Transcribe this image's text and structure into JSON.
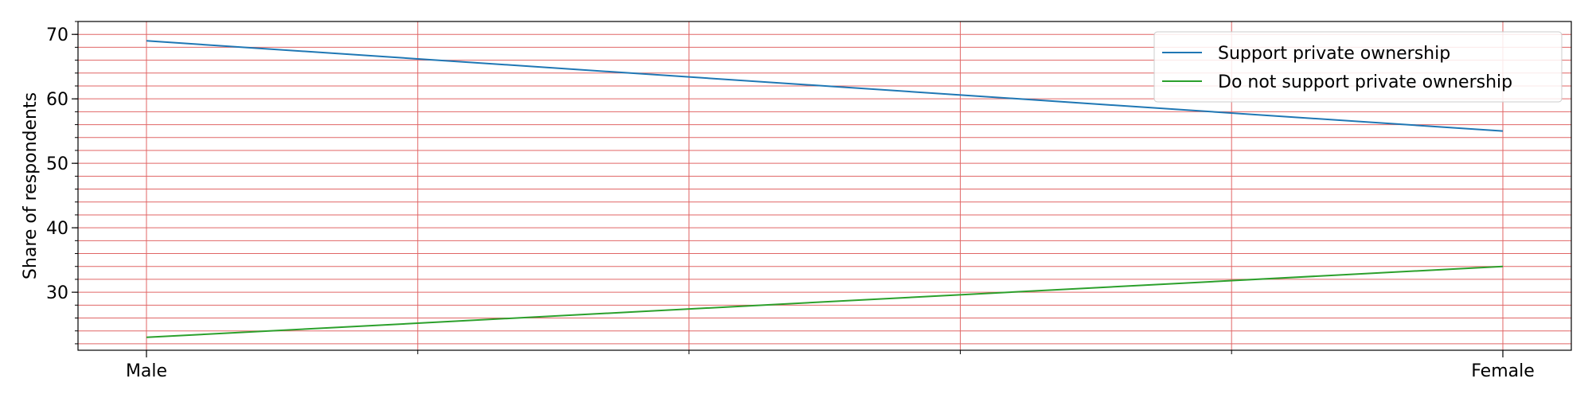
{
  "chart_data": {
    "type": "line",
    "categories": [
      "Male",
      "Female"
    ],
    "series": [
      {
        "name": "Support private ownership",
        "values": [
          69,
          55
        ],
        "color": "#1f77b4"
      },
      {
        "name": "Do not support private ownership",
        "values": [
          23,
          34
        ],
        "color": "#2ca02c"
      }
    ],
    "xlabel": "",
    "ylabel": "Share of respondents",
    "ylim": [
      21,
      72
    ],
    "yticks": [
      30,
      40,
      50,
      60,
      70
    ],
    "y_minor_step": 2,
    "x_minor_divisions": 5,
    "grid": true,
    "grid_color": "#e06666",
    "legend_position": "top-right"
  }
}
